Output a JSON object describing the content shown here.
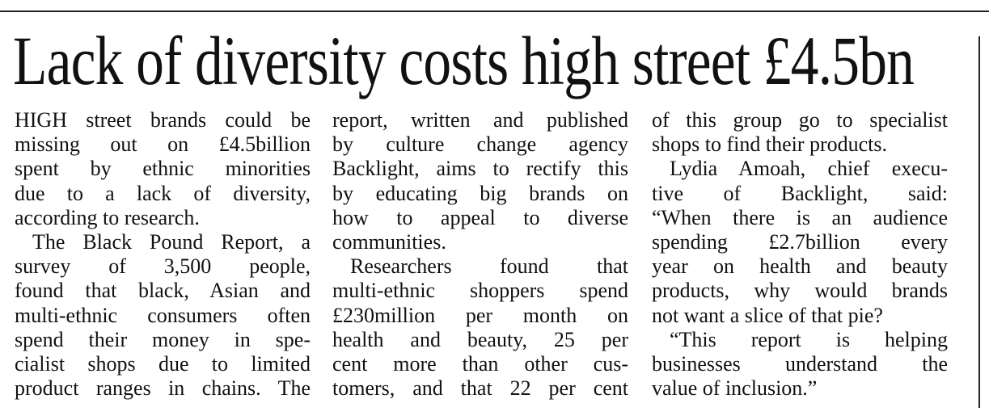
{
  "article": {
    "headline": "Lack of diversity costs high street £4.5bn",
    "columns": [
      {
        "lines": [
          "HIGH street brands could be",
          "missing out on £4.5billion",
          "spent by ethnic minorities",
          "due to a lack of diversity,",
          "according to research.",
          "The Black Pound Report, a",
          "survey of 3,500 people,",
          "found that black, Asian and",
          "multi-ethnic consumers often",
          "spend their money in spe-",
          "cialist shops due to limited",
          "product ranges in chains. The"
        ]
      },
      {
        "lines": [
          "report, written and published",
          "by culture change agency",
          "Backlight, aims to rectify this",
          "by educating big brands on",
          "how to appeal to diverse",
          "communities.",
          "Researchers found that",
          "multi-ethnic shoppers spend",
          "£230million per month on",
          "health and beauty, 25 per",
          "cent more than other cus-",
          "tomers, and that 22 per cent"
        ]
      },
      {
        "lines": [
          "of this group go to specialist",
          "shops to find their products.",
          "Lydia Amoah, chief execu-",
          "tive of Backlight, said:",
          "“When there is an audience",
          "spending £2.7billion every",
          "year on health and beauty",
          "products, why would brands",
          "not want a slice of that pie?",
          "“This report is helping",
          "businesses understand the",
          "value of inclusion.”"
        ]
      }
    ]
  }
}
